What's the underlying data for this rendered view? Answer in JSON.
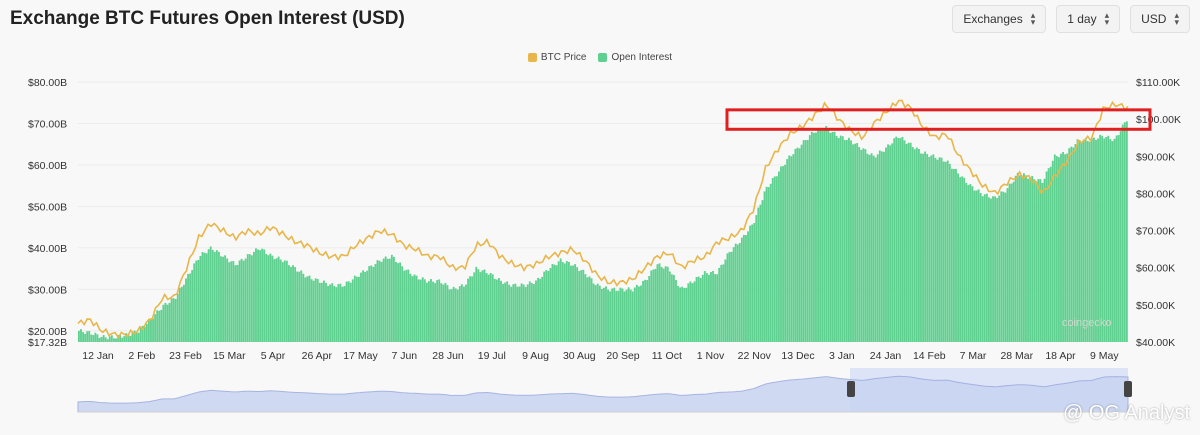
{
  "header": {
    "title": "Exchange BTC Futures Open Interest (USD)",
    "exchanges_label": "Exchanges",
    "interval_label": "1 day",
    "currency_label": "USD"
  },
  "legend": {
    "price_label": "BTC Price",
    "oi_label": "Open Interest"
  },
  "watermarks": {
    "coingecko": "coingecko",
    "og": "@ OG Analyst"
  },
  "colors": {
    "price": "#e8b64a",
    "oi": "#5fd08f",
    "highlight": "#e02020",
    "navigator": "#c9d4f2"
  },
  "chart_data": {
    "type": "bar",
    "title": "Exchange BTC Futures Open Interest (USD)",
    "left_axis": {
      "ticks": [
        "$80.00B",
        "$70.00B",
        "$60.00B",
        "$50.00B",
        "$40.00B",
        "$30.00B",
        "$20.00B",
        "$17.32B"
      ],
      "range": [
        17.32,
        80
      ]
    },
    "right_axis": {
      "ticks": [
        "$110.00K",
        "$100.00K",
        "$90.00K",
        "$80.00K",
        "$70.00K",
        "$60.00K",
        "$50.00K",
        "$40.00K"
      ],
      "range": [
        40,
        110
      ]
    },
    "x_ticks": [
      "12 Jan",
      "2 Feb",
      "23 Feb",
      "15 Mar",
      "5 Apr",
      "26 Apr",
      "17 May",
      "7 Jun",
      "28 Jun",
      "19 Jul",
      "9 Aug",
      "30 Aug",
      "20 Sep",
      "11 Oct",
      "1 Nov",
      "22 Nov",
      "13 Dec",
      "3 Jan",
      "24 Jan",
      "14 Feb",
      "7 Mar",
      "28 Mar",
      "18 Apr",
      "9 May"
    ],
    "series": [
      {
        "name": "Open Interest",
        "unit": "B USD",
        "values": [
          20,
          19.5,
          18.5,
          18.5,
          19,
          20,
          23,
          26,
          28,
          33,
          38,
          40,
          38,
          36,
          38,
          40,
          38,
          37,
          35,
          33,
          32,
          31,
          31,
          33,
          35,
          37,
          38,
          35,
          33,
          32,
          32,
          30,
          31,
          35,
          34,
          32,
          31,
          31,
          32,
          35,
          37,
          36,
          34,
          31,
          30,
          30,
          30,
          32,
          36,
          35,
          30,
          32,
          34,
          34,
          39,
          42,
          46,
          54,
          58,
          62,
          65,
          68,
          69,
          67,
          66,
          64,
          62,
          64,
          67,
          65,
          63,
          62,
          61,
          58,
          55,
          53,
          52,
          54,
          58,
          57,
          56,
          62,
          63,
          66,
          66,
          67,
          66,
          71
        ]
      },
      {
        "name": "BTC Price",
        "unit": "K USD",
        "values": [
          45,
          46,
          43,
          42,
          42,
          43,
          46,
          52,
          52,
          60,
          68,
          72,
          70,
          68,
          70,
          69,
          71,
          69,
          67,
          66,
          64,
          63,
          63,
          66,
          68,
          70,
          69,
          66,
          65,
          63,
          63,
          60,
          60,
          66,
          67,
          63,
          61,
          60,
          61,
          63,
          64,
          65,
          62,
          58,
          56,
          56,
          57,
          60,
          63,
          64,
          60,
          62,
          63,
          67,
          68,
          70,
          76,
          87,
          92,
          96,
          98,
          101,
          104,
          100,
          97,
          95,
          99,
          102,
          105,
          103,
          98,
          95,
          96,
          90,
          86,
          82,
          80,
          83,
          85,
          84,
          80,
          85,
          89,
          94,
          95,
          103,
          104,
          103
        ]
      }
    ]
  }
}
